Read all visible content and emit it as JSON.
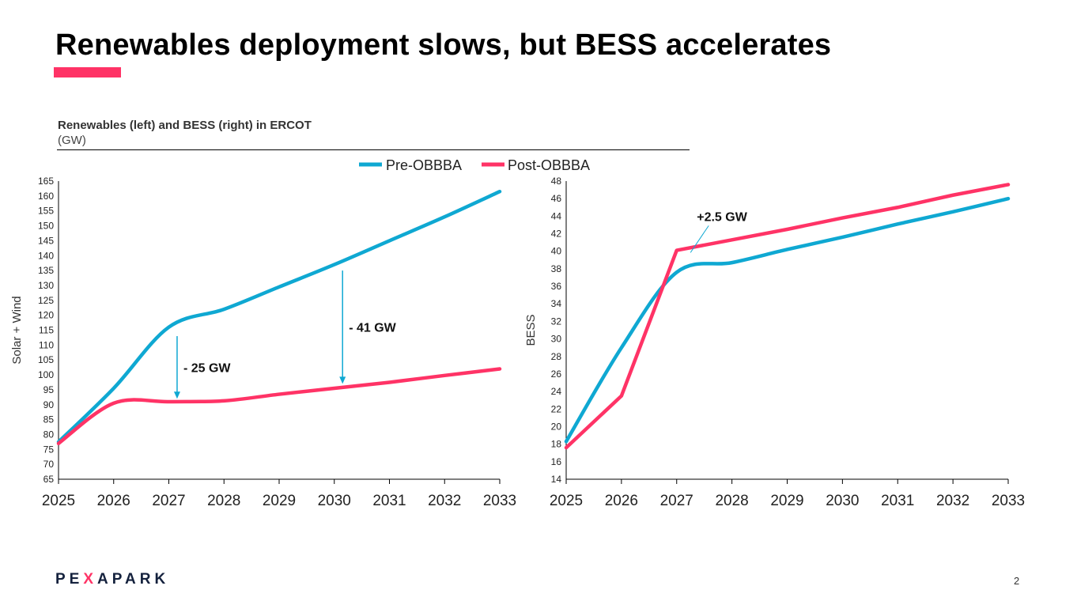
{
  "title": "Renewables deployment slows, but BESS accelerates",
  "subtitle": "Renewables (left) and BESS (right) in ERCOT",
  "unit": "(GW)",
  "logo": "PEXAPARK",
  "page_number": "2",
  "colors": {
    "accent": "#ff3366",
    "pre": "#0fa8d2",
    "post": "#ff3366"
  },
  "legend": [
    {
      "name": "Pre-OBBBA",
      "color": "#0fa8d2"
    },
    {
      "name": "Post-OBBBA",
      "color": "#ff3366"
    }
  ],
  "chart_data": [
    {
      "type": "line",
      "ylabel": "Solar + Wind",
      "x": [
        2025,
        2026,
        2027,
        2028,
        2029,
        2030,
        2031,
        2032,
        2033
      ],
      "ylim": [
        65,
        165
      ],
      "ytick_step": 5,
      "legend_position": "top",
      "series": [
        {
          "name": "Pre-OBBBA",
          "values": [
            77.5,
            95.5,
            116,
            122,
            129.5,
            137,
            145,
            153,
            161.5
          ],
          "smooth": true
        },
        {
          "name": "Post-OBBBA",
          "values": [
            77,
            90.5,
            91,
            91.3,
            93.5,
            95.5,
            97.5,
            99.8,
            102
          ],
          "smooth": true
        }
      ],
      "annotations": [
        {
          "text": "- 25 GW",
          "x": 2027.15,
          "from": 113,
          "to": 92
        },
        {
          "text": "- 41 GW",
          "x": 2030.15,
          "from": 135,
          "to": 97
        }
      ]
    },
    {
      "type": "line",
      "ylabel": "BESS",
      "x": [
        2025,
        2026,
        2027,
        2028,
        2029,
        2030,
        2031,
        2032,
        2033
      ],
      "ylim": [
        14,
        48
      ],
      "ytick_step": 2,
      "series": [
        {
          "name": "Pre-OBBBA",
          "values": [
            18.3,
            29,
            37.6,
            38.7,
            40.2,
            41.6,
            43.1,
            44.5,
            46
          ],
          "smooth": true
        },
        {
          "name": "Post-OBBBA",
          "values": [
            17.6,
            23.5,
            40.1,
            41.3,
            42.5,
            43.8,
            45,
            46.4,
            47.6
          ],
          "smooth": false
        }
      ],
      "annotations": [
        {
          "text": "+2.5 GW",
          "x": 2027.25,
          "y": 44
        }
      ]
    }
  ]
}
